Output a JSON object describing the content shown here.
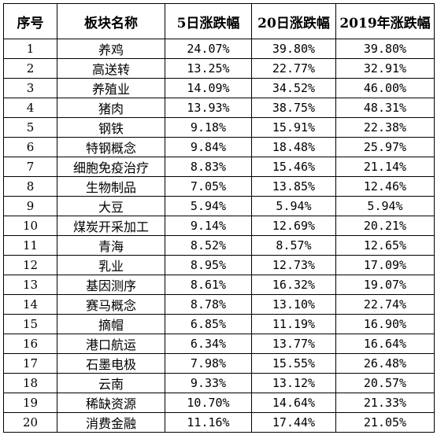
{
  "table": {
    "headers": [
      "序号",
      "板块名称",
      "5日涨跌幅",
      "20日涨跌幅",
      "2019年涨跌幅"
    ],
    "rows": [
      [
        "1",
        "养鸡",
        "24.07%",
        "39.80%",
        "39.80%"
      ],
      [
        "2",
        "高送转",
        "13.25%",
        "22.77%",
        "32.91%"
      ],
      [
        "3",
        "养殖业",
        "14.09%",
        "34.52%",
        "46.00%"
      ],
      [
        "4",
        "猪肉",
        "13.93%",
        "38.75%",
        "48.31%"
      ],
      [
        "5",
        "钢铁",
        "9.18%",
        "15.91%",
        "22.38%"
      ],
      [
        "6",
        "特钢概念",
        "9.84%",
        "18.48%",
        "25.97%"
      ],
      [
        "7",
        "细胞免疫治疗",
        "8.83%",
        "15.46%",
        "21.14%"
      ],
      [
        "8",
        "生物制品",
        "7.05%",
        "13.85%",
        "12.46%"
      ],
      [
        "9",
        "大豆",
        "5.94%",
        "5.94%",
        "5.94%"
      ],
      [
        "10",
        "煤炭开采加工",
        "9.14%",
        "12.69%",
        "20.21%"
      ],
      [
        "11",
        "青海",
        "8.52%",
        "8.57%",
        "12.65%"
      ],
      [
        "12",
        "乳业",
        "8.95%",
        "12.73%",
        "17.09%"
      ],
      [
        "13",
        "基因测序",
        "8.61%",
        "16.32%",
        "19.07%"
      ],
      [
        "14",
        "赛马概念",
        "8.78%",
        "13.10%",
        "22.74%"
      ],
      [
        "15",
        "摘帽",
        "6.85%",
        "11.19%",
        "16.90%"
      ],
      [
        "16",
        "港口航运",
        "6.34%",
        "13.77%",
        "16.64%"
      ],
      [
        "17",
        "石墨电极",
        "7.98%",
        "15.55%",
        "26.48%"
      ],
      [
        "18",
        "云南",
        "9.33%",
        "13.12%",
        "20.57%"
      ],
      [
        "19",
        "稀缺资源",
        "10.70%",
        "14.64%",
        "21.33%"
      ],
      [
        "20",
        "消费金融",
        "11.16%",
        "17.44%",
        "21.05%"
      ]
    ]
  }
}
